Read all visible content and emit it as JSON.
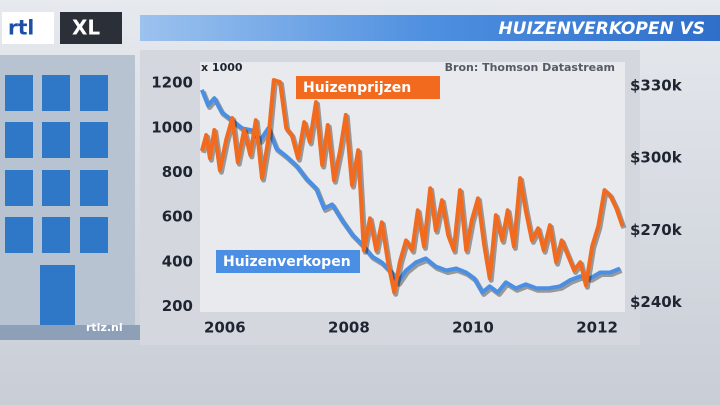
{
  "logo": {
    "left": "rtl",
    "right": "XL"
  },
  "site": "rtlz.nl",
  "chart_data": {
    "type": "line",
    "title": "HUIZENVERKOPEN VS",
    "unit_note": "x 1000",
    "source": "Bron: Thomson Datastream",
    "xlim": [
      2005.6,
      2012.45
    ],
    "xticks": [
      2006,
      2008,
      2010,
      2012
    ],
    "ylim": [
      175,
      1295
    ],
    "yticks": [
      200,
      400,
      600,
      800,
      1000,
      1200
    ],
    "y2lim": [
      236,
      340
    ],
    "y2ticks": [
      {
        "value": 240,
        "label": "$240k"
      },
      {
        "value": 270,
        "label": "$270k"
      },
      {
        "value": 300,
        "label": "$300k"
      },
      {
        "value": 330,
        "label": "$330k"
      }
    ],
    "grid": false,
    "series": [
      {
        "name": "Huizenverkopen",
        "color": "#4a8fe3",
        "axis": "y",
        "x": [
          2005.63,
          2005.73,
          2005.83,
          2005.95,
          2006.12,
          2006.28,
          2006.44,
          2006.57,
          2006.7,
          2006.83,
          2006.99,
          2007.15,
          2007.31,
          2007.47,
          2007.6,
          2007.73,
          2007.89,
          2008.05,
          2008.21,
          2008.37,
          2008.53,
          2008.69,
          2008.79,
          2008.92,
          2009.08,
          2009.24,
          2009.4,
          2009.57,
          2009.73,
          2009.89,
          2010.02,
          2010.15,
          2010.27,
          2010.4,
          2010.53,
          2010.69,
          2010.85,
          2011.02,
          2011.21,
          2011.4,
          2011.56,
          2011.73,
          2011.89,
          2012.05,
          2012.21,
          2012.37
        ],
        "values": [
          1170,
          1100,
          1133,
          1070,
          1034,
          998,
          989,
          944,
          998,
          908,
          873,
          832,
          774,
          729,
          639,
          657,
          586,
          523,
          478,
          424,
          397,
          352,
          308,
          361,
          397,
          415,
          379,
          361,
          370,
          352,
          326,
          263,
          290,
          263,
          308,
          281,
          299,
          281,
          281,
          290,
          317,
          335,
          326,
          352,
          352,
          370
        ]
      },
      {
        "name": "Huizenprijzen",
        "color": "#f26a1e",
        "axis": "y2",
        "x": [
          2005.63,
          2005.7,
          2005.76,
          2005.83,
          2005.92,
          2006.02,
          2006.12,
          2006.21,
          2006.31,
          2006.41,
          2006.5,
          2006.6,
          2006.7,
          2006.79,
          2006.89,
          2006.99,
          2007.08,
          2007.18,
          2007.28,
          2007.37,
          2007.47,
          2007.57,
          2007.66,
          2007.76,
          2007.86,
          2007.95,
          2008.05,
          2008.15,
          2008.24,
          2008.34,
          2008.44,
          2008.53,
          2008.63,
          2008.73,
          2008.82,
          2008.92,
          2009.02,
          2009.11,
          2009.21,
          2009.31,
          2009.4,
          2009.5,
          2009.6,
          2009.69,
          2009.79,
          2009.89,
          2009.98,
          2010.08,
          2010.18,
          2010.27,
          2010.37,
          2010.47,
          2010.56,
          2010.66,
          2010.76,
          2010.85,
          2010.95,
          2011.05,
          2011.14,
          2011.24,
          2011.34,
          2011.43,
          2011.53,
          2011.63,
          2011.73,
          2011.82,
          2011.92,
          2012.02,
          2012.12,
          2012.21,
          2012.31,
          2012.41
        ],
        "values": [
          303,
          309.6,
          300,
          311.7,
          295,
          307.5,
          316.7,
          298.3,
          311.7,
          301.3,
          315.8,
          291.7,
          307.5,
          332.5,
          331.7,
          312.5,
          309.6,
          300,
          315,
          306.7,
          323.3,
          297.1,
          313.8,
          290.8,
          303.3,
          318,
          288.8,
          303.3,
          261.7,
          275,
          261.7,
          273.3,
          256.7,
          244.2,
          256.7,
          265.8,
          261.7,
          278.3,
          263.3,
          287.5,
          270,
          282.5,
          267.9,
          261.7,
          286.7,
          261.7,
          274.2,
          283.3,
          263.8,
          250,
          276.3,
          265.8,
          278.3,
          263.3,
          291.7,
          278.3,
          265.8,
          270.8,
          261.7,
          272.1,
          256.7,
          265.8,
          259.6,
          253.3,
          256.7,
          247.1,
          263.3,
          271.7,
          286.7,
          284.6,
          279.2,
          271.7
        ]
      }
    ]
  }
}
